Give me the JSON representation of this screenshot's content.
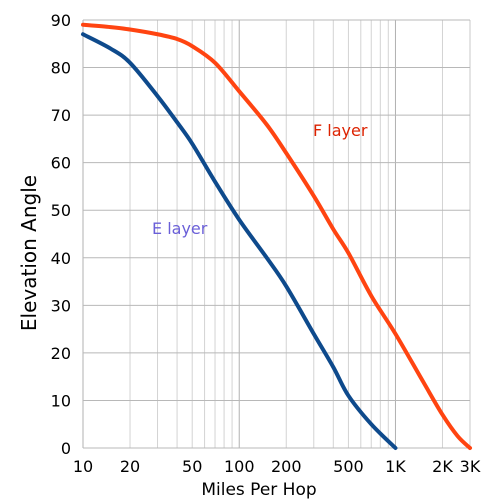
{
  "chart_data": {
    "type": "line",
    "xlabel": "Miles Per Hop",
    "ylabel": "Elevation Angle",
    "x_scale": "log",
    "xlim": [
      10,
      3000
    ],
    "ylim": [
      0,
      90
    ],
    "grid": true,
    "x_ticks": [
      {
        "value": 10,
        "label": "10"
      },
      {
        "value": 20,
        "label": "20"
      },
      {
        "value": 50,
        "label": "50"
      },
      {
        "value": 100,
        "label": "100"
      },
      {
        "value": 200,
        "label": "200"
      },
      {
        "value": 500,
        "label": "500"
      },
      {
        "value": 1000,
        "label": "1K"
      },
      {
        "value": 2000,
        "label": "2K"
      },
      {
        "value": 3000,
        "label": "3K"
      }
    ],
    "y_ticks": [
      {
        "value": 0,
        "label": "0"
      },
      {
        "value": 10,
        "label": "10"
      },
      {
        "value": 20,
        "label": "20"
      },
      {
        "value": 30,
        "label": "30"
      },
      {
        "value": 40,
        "label": "40"
      },
      {
        "value": 50,
        "label": "50"
      },
      {
        "value": 60,
        "label": "60"
      },
      {
        "value": 70,
        "label": "70"
      },
      {
        "value": 80,
        "label": "80"
      },
      {
        "value": 90,
        "label": "90"
      }
    ],
    "series": [
      {
        "name": "F layer",
        "color": "#ff4411",
        "label_color": "#dd2200",
        "points": [
          [
            10,
            89
          ],
          [
            15,
            88.5
          ],
          [
            20,
            88
          ],
          [
            30,
            87
          ],
          [
            40,
            86
          ],
          [
            50,
            84.5
          ],
          [
            70,
            81
          ],
          [
            100,
            75
          ],
          [
            150,
            68
          ],
          [
            200,
            62
          ],
          [
            300,
            53
          ],
          [
            400,
            46
          ],
          [
            500,
            41
          ],
          [
            700,
            32
          ],
          [
            1000,
            24
          ],
          [
            1500,
            14
          ],
          [
            2000,
            7
          ],
          [
            2500,
            2.5
          ],
          [
            3000,
            0
          ]
        ]
      },
      {
        "name": "E layer",
        "color": "#0e4a8c",
        "label_color": "#6a5fd8",
        "points": [
          [
            10,
            87
          ],
          [
            15,
            84
          ],
          [
            20,
            81
          ],
          [
            30,
            74
          ],
          [
            40,
            68.5
          ],
          [
            50,
            64
          ],
          [
            70,
            56
          ],
          [
            100,
            48
          ],
          [
            150,
            40
          ],
          [
            200,
            34
          ],
          [
            300,
            24
          ],
          [
            400,
            17
          ],
          [
            500,
            11
          ],
          [
            700,
            5
          ],
          [
            1000,
            0
          ]
        ]
      }
    ]
  }
}
